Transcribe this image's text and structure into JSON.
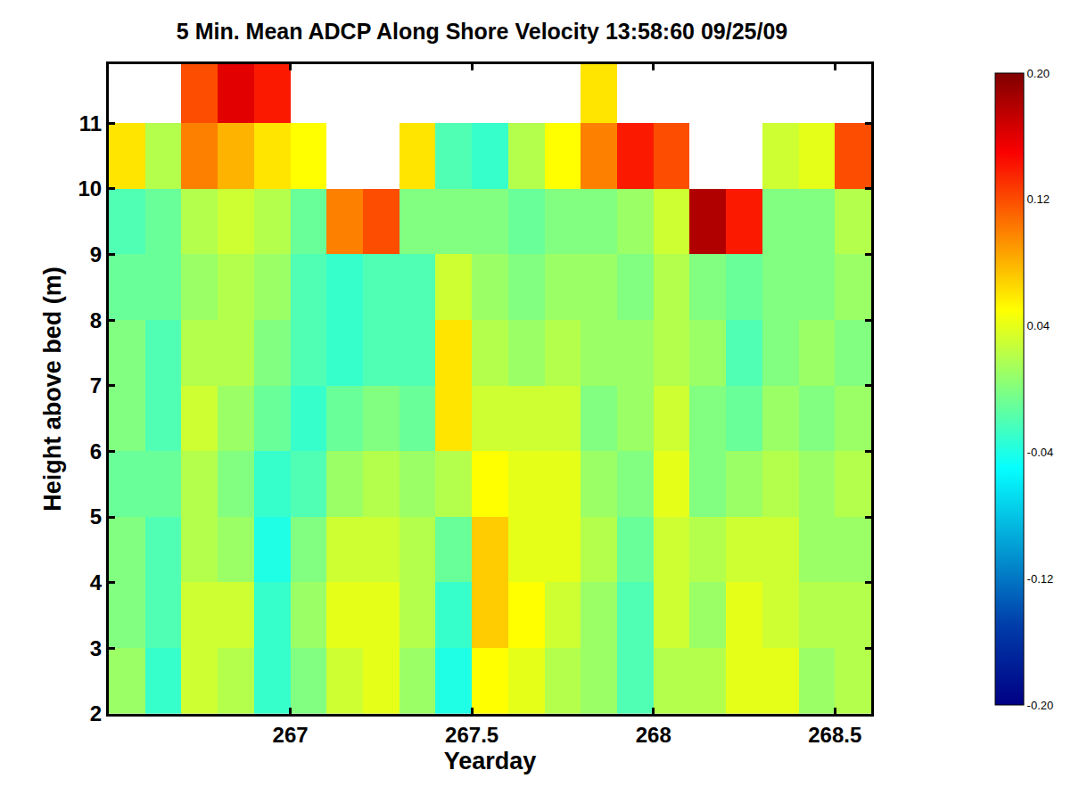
{
  "chart_data": {
    "type": "heatmap",
    "title": "5 Min. Mean ADCP Along Shore Velocity 13:58:60 09/25/09",
    "x_label": "Yearday",
    "y_label": "Height above bed (m)",
    "color": "Jet",
    "grid": false,
    "x": [
      266.55,
      266.65,
      266.75,
      266.85,
      266.95,
      267.05,
      267.15,
      267.25,
      267.35,
      267.45,
      267.55,
      267.65,
      267.75,
      267.85,
      267.95,
      268.05,
      268.15,
      268.25,
      268.35,
      268.45,
      268.55
    ],
    "y": [
      2.5,
      3.5,
      4.5,
      5.5,
      6.5,
      7.5,
      8.5,
      9.5,
      10.5,
      11.5
    ],
    "z": [
      [
        0.01,
        -0.03,
        0.03,
        0.02,
        -0.03,
        0.0,
        0.03,
        0.04,
        0.01,
        -0.04,
        0.05,
        0.04,
        0.02,
        0.01,
        -0.02,
        0.02,
        0.02,
        0.04,
        0.04,
        0.01,
        0.02
      ],
      [
        0.0,
        -0.02,
        0.03,
        0.03,
        -0.03,
        0.01,
        0.04,
        0.04,
        0.02,
        -0.03,
        0.07,
        0.05,
        0.03,
        0.01,
        -0.02,
        0.03,
        0.01,
        0.04,
        0.03,
        0.02,
        0.02
      ],
      [
        0.0,
        -0.02,
        0.02,
        0.01,
        -0.04,
        0.0,
        0.03,
        0.03,
        0.02,
        -0.01,
        0.07,
        0.04,
        0.04,
        0.02,
        -0.01,
        0.03,
        0.02,
        0.03,
        0.03,
        0.01,
        0.01
      ],
      [
        -0.01,
        -0.01,
        0.02,
        0.0,
        -0.03,
        -0.02,
        0.01,
        0.02,
        0.01,
        0.02,
        0.05,
        0.04,
        0.04,
        0.01,
        0.0,
        0.04,
        0.0,
        0.01,
        0.02,
        0.01,
        0.02
      ],
      [
        0.0,
        -0.02,
        0.03,
        0.01,
        -0.01,
        -0.03,
        -0.01,
        0.0,
        -0.01,
        0.06,
        0.03,
        0.03,
        0.03,
        0.0,
        0.01,
        0.03,
        0.0,
        -0.01,
        0.01,
        0.0,
        0.01
      ],
      [
        0.0,
        -0.02,
        0.02,
        0.02,
        0.0,
        -0.02,
        -0.03,
        -0.02,
        -0.02,
        0.06,
        0.02,
        0.01,
        0.02,
        0.01,
        0.01,
        0.02,
        0.01,
        -0.02,
        0.0,
        0.01,
        0.0
      ],
      [
        -0.01,
        -0.01,
        0.01,
        0.02,
        0.01,
        -0.02,
        -0.03,
        -0.02,
        -0.02,
        0.03,
        0.01,
        0.0,
        0.01,
        0.01,
        0.0,
        0.02,
        0.0,
        -0.01,
        0.0,
        0.0,
        0.01
      ],
      [
        -0.02,
        -0.01,
        0.02,
        0.03,
        0.02,
        -0.01,
        0.1,
        0.12,
        0.0,
        0.0,
        0.0,
        -0.01,
        0.0,
        0.0,
        0.01,
        0.03,
        0.18,
        0.14,
        0.0,
        0.0,
        0.02
      ],
      [
        0.06,
        0.02,
        0.1,
        0.08,
        0.06,
        0.05,
        null,
        null,
        0.06,
        -0.02,
        -0.03,
        0.02,
        0.05,
        0.1,
        0.14,
        0.12,
        null,
        null,
        0.03,
        0.04,
        0.12
      ],
      [
        null,
        null,
        0.12,
        0.16,
        0.14,
        null,
        null,
        null,
        null,
        null,
        null,
        null,
        null,
        0.06,
        null,
        null,
        null,
        null,
        null,
        null,
        null
      ]
    ],
    "xlim": [
      266.5,
      268.6
    ],
    "ylim": [
      2,
      11.9
    ],
    "xticks": [
      267,
      267.5,
      268,
      268.5
    ],
    "yticks": [
      2,
      3,
      4,
      5,
      6,
      7,
      8,
      9,
      10,
      11
    ],
    "colorbar": {
      "range": [
        -0.2,
        0.2
      ],
      "ticks": [
        {
          "value": -0.2,
          "label": "-0.20"
        },
        -0.12,
        -0.04,
        0.04,
        0.12,
        {
          "value": 0.2,
          "label": "0.20"
        }
      ]
    }
  }
}
